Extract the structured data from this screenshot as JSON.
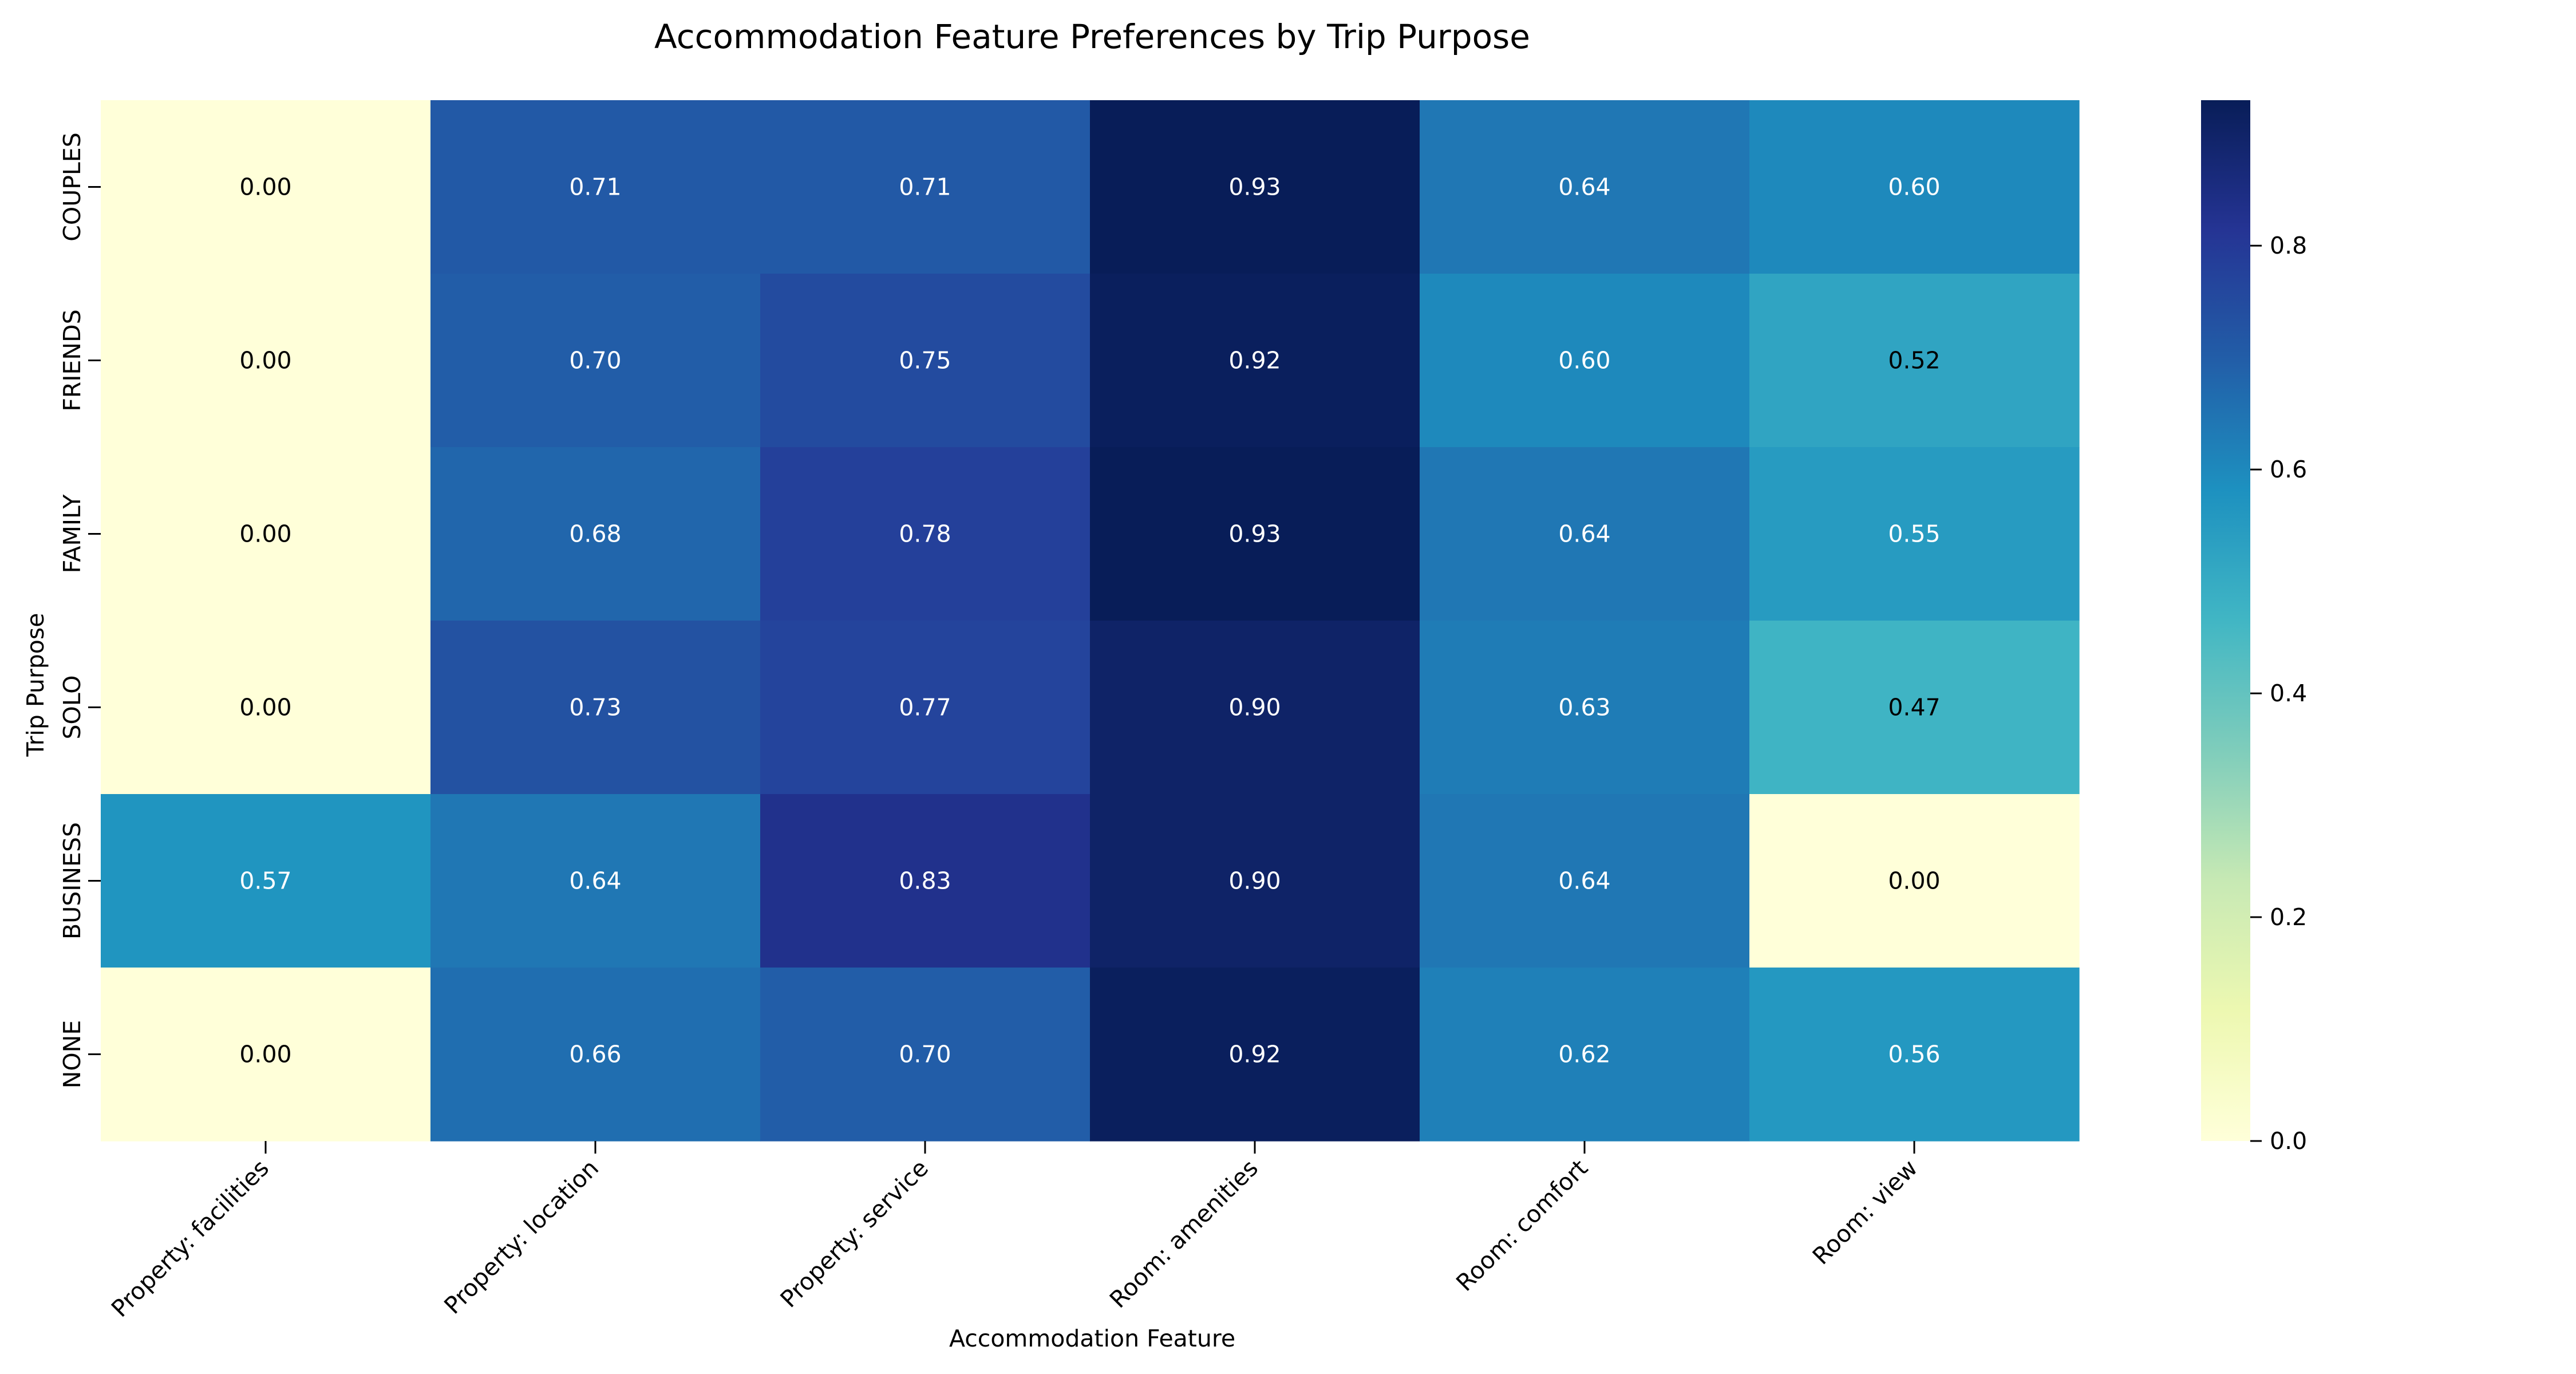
{
  "chart_data": {
    "type": "heatmap",
    "title": "Accommodation Feature Preferences by Trip Purpose",
    "xlabel": "Accommodation Feature",
    "ylabel": "Trip Purpose",
    "x_categories": [
      "Property: facilities",
      "Property: location",
      "Property: service",
      "Room: amenities",
      "Room: comfort",
      "Room: view"
    ],
    "y_categories": [
      "COUPLES",
      "FRIENDS",
      "FAMILY",
      "SOLO",
      "BUSINESS",
      "NONE"
    ],
    "values": [
      [
        0.0,
        0.71,
        0.71,
        0.93,
        0.64,
        0.6
      ],
      [
        0.0,
        0.7,
        0.75,
        0.92,
        0.6,
        0.52
      ],
      [
        0.0,
        0.68,
        0.78,
        0.93,
        0.64,
        0.55
      ],
      [
        0.0,
        0.73,
        0.77,
        0.9,
        0.63,
        0.47
      ],
      [
        0.57,
        0.64,
        0.83,
        0.9,
        0.64,
        0.0
      ],
      [
        0.0,
        0.66,
        0.7,
        0.92,
        0.62,
        0.56
      ]
    ],
    "cell_labels": [
      [
        "0.00",
        "0.71",
        "0.71",
        "0.93",
        "0.64",
        "0.60"
      ],
      [
        "0.00",
        "0.70",
        "0.75",
        "0.92",
        "0.60",
        "0.52"
      ],
      [
        "0.00",
        "0.68",
        "0.78",
        "0.93",
        "0.64",
        "0.55"
      ],
      [
        "0.00",
        "0.73",
        "0.77",
        "0.90",
        "0.63",
        "0.47"
      ],
      [
        "0.57",
        "0.64",
        "0.83",
        "0.90",
        "0.64",
        "0.00"
      ],
      [
        "0.00",
        "0.66",
        "0.70",
        "0.92",
        "0.62",
        "0.56"
      ]
    ],
    "colormap": "YlGnBu",
    "colormap_stops": [
      "#ffffd9",
      "#edf8b1",
      "#c7e9b4",
      "#7fcdbb",
      "#41b6c4",
      "#1d91c0",
      "#225ea8",
      "#253494",
      "#081d58"
    ],
    "vmin": 0.0,
    "vmax": 0.93,
    "colorbar_ticks": [
      0.0,
      0.2,
      0.4,
      0.6,
      0.8
    ],
    "colorbar_tick_labels": [
      "0.0",
      "0.2",
      "0.4",
      "0.6",
      "0.8"
    ],
    "annotation_dark_color": "#000000",
    "annotation_light_color": "#ffffff",
    "grid": false,
    "legend": "colorbar right"
  }
}
